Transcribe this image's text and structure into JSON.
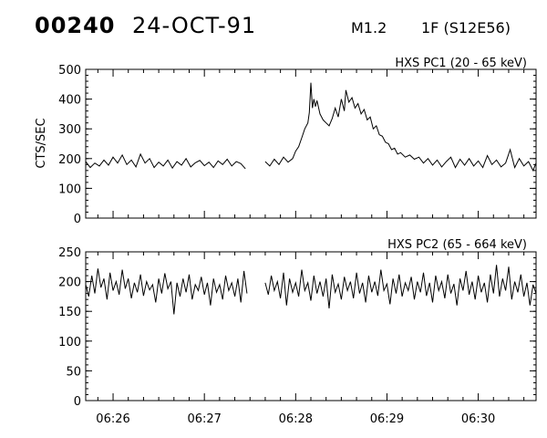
{
  "header": {
    "event_number": "00240",
    "date": "24-OCT-91",
    "goes_class": "M1.2",
    "optical": "1F (S12E56)"
  },
  "chart_data": [
    {
      "type": "line",
      "title": "HXS PC1 (20 - 65 keV)",
      "ylabel": "CTS/SEC",
      "xlabel": "",
      "xlim": [
        "06:25:42",
        "06:30:38"
      ],
      "ylim": [
        0,
        500
      ],
      "yticks": [
        0,
        100,
        200,
        300,
        400,
        500
      ],
      "xticks": [
        "06:26",
        "06:27",
        "06:28",
        "06:29",
        "06:30"
      ],
      "series": [
        {
          "points": [
            [
              "06:25:42",
              190
            ],
            [
              "06:25:45",
              170
            ],
            [
              "06:25:48",
              185
            ],
            [
              "06:25:51",
              175
            ],
            [
              "06:25:54",
              195
            ],
            [
              "06:25:57",
              178
            ],
            [
              "06:26:00",
              205
            ],
            [
              "06:26:03",
              185
            ],
            [
              "06:26:06",
              212
            ],
            [
              "06:26:09",
              180
            ],
            [
              "06:26:12",
              195
            ],
            [
              "06:26:15",
              172
            ],
            [
              "06:26:18",
              215
            ],
            [
              "06:26:21",
              185
            ],
            [
              "06:26:24",
              200
            ],
            [
              "06:26:27",
              170
            ],
            [
              "06:26:30",
              188
            ],
            [
              "06:26:33",
              175
            ],
            [
              "06:26:36",
              195
            ],
            [
              "06:26:39",
              168
            ],
            [
              "06:26:42",
              190
            ],
            [
              "06:26:45",
              178
            ],
            [
              "06:26:48",
              200
            ],
            [
              "06:26:51",
              172
            ],
            [
              "06:26:54",
              186
            ],
            [
              "06:26:57",
              194
            ],
            [
              "06:27:00",
              176
            ],
            [
              "06:27:03",
              188
            ],
            [
              "06:27:06",
              170
            ],
            [
              "06:27:09",
              192
            ],
            [
              "06:27:12",
              180
            ],
            [
              "06:27:15",
              198
            ],
            [
              "06:27:18",
              175
            ],
            [
              "06:27:21",
              190
            ],
            [
              "06:27:24",
              183
            ],
            [
              "06:27:27",
              166
            ],
            [
              "06:27:40",
              190
            ],
            [
              "06:27:43",
              175
            ],
            [
              "06:27:46",
              198
            ],
            [
              "06:27:49",
              180
            ],
            [
              "06:27:52",
              205
            ],
            [
              "06:27:55",
              188
            ],
            [
              "06:27:58",
              200
            ],
            [
              "06:28:00",
              225
            ],
            [
              "06:28:02",
              240
            ],
            [
              "06:28:04",
              270
            ],
            [
              "06:28:06",
              300
            ],
            [
              "06:28:08",
              320
            ],
            [
              "06:28:09",
              355
            ],
            [
              "06:28:10",
              455
            ],
            [
              "06:28:11",
              370
            ],
            [
              "06:28:12",
              400
            ],
            [
              "06:28:13",
              375
            ],
            [
              "06:28:14",
              395
            ],
            [
              "06:28:16",
              350
            ],
            [
              "06:28:18",
              330
            ],
            [
              "06:28:20",
              320
            ],
            [
              "06:28:22",
              310
            ],
            [
              "06:28:24",
              335
            ],
            [
              "06:28:26",
              370
            ],
            [
              "06:28:28",
              340
            ],
            [
              "06:28:30",
              400
            ],
            [
              "06:28:32",
              360
            ],
            [
              "06:28:33",
              430
            ],
            [
              "06:28:35",
              390
            ],
            [
              "06:28:37",
              405
            ],
            [
              "06:28:39",
              370
            ],
            [
              "06:28:41",
              385
            ],
            [
              "06:28:43",
              350
            ],
            [
              "06:28:45",
              365
            ],
            [
              "06:28:47",
              330
            ],
            [
              "06:28:49",
              340
            ],
            [
              "06:28:51",
              300
            ],
            [
              "06:28:53",
              310
            ],
            [
              "06:28:55",
              280
            ],
            [
              "06:28:57",
              275
            ],
            [
              "06:28:59",
              255
            ],
            [
              "06:29:01",
              250
            ],
            [
              "06:29:03",
              230
            ],
            [
              "06:29:05",
              235
            ],
            [
              "06:29:07",
              215
            ],
            [
              "06:29:09",
              220
            ],
            [
              "06:29:12",
              205
            ],
            [
              "06:29:15",
              212
            ],
            [
              "06:29:18",
              198
            ],
            [
              "06:29:21",
              205
            ],
            [
              "06:29:24",
              185
            ],
            [
              "06:29:27",
              200
            ],
            [
              "06:29:30",
              178
            ],
            [
              "06:29:33",
              195
            ],
            [
              "06:29:36",
              172
            ],
            [
              "06:29:39",
              190
            ],
            [
              "06:29:42",
              205
            ],
            [
              "06:29:45",
              170
            ],
            [
              "06:29:48",
              198
            ],
            [
              "06:29:51",
              178
            ],
            [
              "06:29:54",
              200
            ],
            [
              "06:29:57",
              175
            ],
            [
              "06:30:00",
              192
            ],
            [
              "06:30:03",
              170
            ],
            [
              "06:30:06",
              210
            ],
            [
              "06:30:09",
              180
            ],
            [
              "06:30:12",
              195
            ],
            [
              "06:30:15",
              172
            ],
            [
              "06:30:18",
              185
            ],
            [
              "06:30:21",
              230
            ],
            [
              "06:30:24",
              170
            ],
            [
              "06:30:27",
              200
            ],
            [
              "06:30:30",
              175
            ],
            [
              "06:30:33",
              190
            ],
            [
              "06:30:36",
              160
            ],
            [
              "06:30:38",
              185
            ]
          ]
        }
      ]
    },
    {
      "type": "line",
      "title": "HXS PC2 (65 - 664 keV)",
      "ylabel": "",
      "xlabel": "",
      "xlim": [
        "06:25:42",
        "06:30:38"
      ],
      "ylim": [
        0,
        250
      ],
      "yticks": [
        0,
        50,
        100,
        150,
        200,
        250
      ],
      "xticks": [
        "06:26",
        "06:27",
        "06:28",
        "06:29",
        "06:30"
      ],
      "series": [
        {
          "points": [
            [
              "06:25:42",
              195
            ],
            [
              "06:25:44",
              175
            ],
            [
              "06:25:46",
              210
            ],
            [
              "06:25:48",
              180
            ],
            [
              "06:25:50",
              222
            ],
            [
              "06:25:52",
              190
            ],
            [
              "06:25:54",
              205
            ],
            [
              "06:25:56",
              170
            ],
            [
              "06:25:58",
              215
            ],
            [
              "06:26:00",
              185
            ],
            [
              "06:26:02",
              200
            ],
            [
              "06:26:04",
              178
            ],
            [
              "06:26:06",
              220
            ],
            [
              "06:26:08",
              188
            ],
            [
              "06:26:10",
              205
            ],
            [
              "06:26:12",
              172
            ],
            [
              "06:26:14",
              198
            ],
            [
              "06:26:16",
              182
            ],
            [
              "06:26:18",
              212
            ],
            [
              "06:26:20",
              176
            ],
            [
              "06:26:22",
              200
            ],
            [
              "06:26:24",
              186
            ],
            [
              "06:26:26",
              195
            ],
            [
              "06:26:28",
              165
            ],
            [
              "06:26:30",
              205
            ],
            [
              "06:26:32",
              180
            ],
            [
              "06:26:34",
              214
            ],
            [
              "06:26:36",
              188
            ],
            [
              "06:26:38",
              200
            ],
            [
              "06:26:40",
              145
            ],
            [
              "06:26:42",
              198
            ],
            [
              "06:26:44",
              175
            ],
            [
              "06:26:46",
              205
            ],
            [
              "06:26:48",
              182
            ],
            [
              "06:26:50",
              212
            ],
            [
              "06:26:52",
              170
            ],
            [
              "06:26:54",
              195
            ],
            [
              "06:26:56",
              185
            ],
            [
              "06:26:58",
              208
            ],
            [
              "06:27:00",
              178
            ],
            [
              "06:27:02",
              198
            ],
            [
              "06:27:04",
              160
            ],
            [
              "06:27:06",
              205
            ],
            [
              "06:27:08",
              182
            ],
            [
              "06:27:10",
              195
            ],
            [
              "06:27:12",
              170
            ],
            [
              "06:27:14",
              210
            ],
            [
              "06:27:16",
              185
            ],
            [
              "06:27:18",
              198
            ],
            [
              "06:27:20",
              175
            ],
            [
              "06:27:22",
              205
            ],
            [
              "06:27:24",
              165
            ],
            [
              "06:27:26",
              218
            ],
            [
              "06:27:28",
              180
            ],
            [
              "06:27:40",
              198
            ],
            [
              "06:27:42",
              178
            ],
            [
              "06:27:44",
              210
            ],
            [
              "06:27:46",
              185
            ],
            [
              "06:27:48",
              200
            ],
            [
              "06:27:50",
              172
            ],
            [
              "06:27:52",
              215
            ],
            [
              "06:27:54",
              160
            ],
            [
              "06:27:56",
              205
            ],
            [
              "06:27:58",
              182
            ],
            [
              "06:28:00",
              198
            ],
            [
              "06:28:02",
              175
            ],
            [
              "06:28:04",
              220
            ],
            [
              "06:28:06",
              185
            ],
            [
              "06:28:08",
              198
            ],
            [
              "06:28:10",
              168
            ],
            [
              "06:28:12",
              210
            ],
            [
              "06:28:14",
              180
            ],
            [
              "06:28:16",
              200
            ],
            [
              "06:28:18",
              175
            ],
            [
              "06:28:20",
              205
            ],
            [
              "06:28:22",
              155
            ],
            [
              "06:28:24",
              212
            ],
            [
              "06:28:26",
              182
            ],
            [
              "06:28:28",
              196
            ],
            [
              "06:28:30",
              170
            ],
            [
              "06:28:32",
              208
            ],
            [
              "06:28:34",
              185
            ],
            [
              "06:28:36",
              200
            ],
            [
              "06:28:38",
              172
            ],
            [
              "06:28:40",
              215
            ],
            [
              "06:28:42",
              180
            ],
            [
              "06:28:44",
              198
            ],
            [
              "06:28:46",
              165
            ],
            [
              "06:28:48",
              210
            ],
            [
              "06:28:50",
              182
            ],
            [
              "06:28:52",
              200
            ],
            [
              "06:28:54",
              176
            ],
            [
              "06:28:56",
              220
            ],
            [
              "06:28:58",
              185
            ],
            [
              "06:29:00",
              196
            ],
            [
              "06:29:02",
              162
            ],
            [
              "06:29:04",
              205
            ],
            [
              "06:29:06",
              180
            ],
            [
              "06:29:08",
              212
            ],
            [
              "06:29:10",
              175
            ],
            [
              "06:29:12",
              198
            ],
            [
              "06:29:14",
              185
            ],
            [
              "06:29:16",
              208
            ],
            [
              "06:29:18",
              170
            ],
            [
              "06:29:20",
              200
            ],
            [
              "06:29:22",
              182
            ],
            [
              "06:29:24",
              215
            ],
            [
              "06:29:26",
              176
            ],
            [
              "06:29:28",
              198
            ],
            [
              "06:29:30",
              165
            ],
            [
              "06:29:32",
              210
            ],
            [
              "06:29:34",
              185
            ],
            [
              "06:29:36",
              200
            ],
            [
              "06:29:38",
              172
            ],
            [
              "06:29:40",
              212
            ],
            [
              "06:29:42",
              180
            ],
            [
              "06:29:44",
              196
            ],
            [
              "06:29:46",
              160
            ],
            [
              "06:29:48",
              205
            ],
            [
              "06:29:50",
              185
            ],
            [
              "06:29:52",
              218
            ],
            [
              "06:29:54",
              178
            ],
            [
              "06:29:56",
              200
            ],
            [
              "06:29:58",
              170
            ],
            [
              "06:30:00",
              210
            ],
            [
              "06:30:02",
              182
            ],
            [
              "06:30:04",
              198
            ],
            [
              "06:30:06",
              165
            ],
            [
              "06:30:08",
              212
            ],
            [
              "06:30:10",
              180
            ],
            [
              "06:30:12",
              228
            ],
            [
              "06:30:14",
              175
            ],
            [
              "06:30:16",
              205
            ],
            [
              "06:30:18",
              185
            ],
            [
              "06:30:20",
              225
            ],
            [
              "06:30:22",
              170
            ],
            [
              "06:30:24",
              200
            ],
            [
              "06:30:26",
              182
            ],
            [
              "06:30:28",
              212
            ],
            [
              "06:30:30",
              175
            ],
            [
              "06:30:32",
              198
            ],
            [
              "06:30:34",
              160
            ],
            [
              "06:30:36",
              195
            ],
            [
              "06:30:38",
              180
            ]
          ]
        }
      ]
    }
  ]
}
